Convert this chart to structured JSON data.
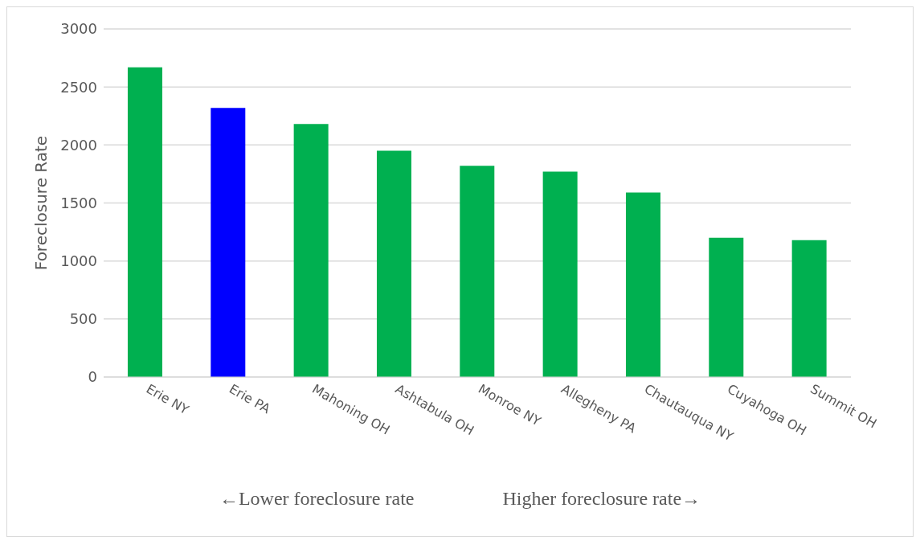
{
  "chart_data": {
    "type": "bar",
    "ylabel": "Foreclosure Rate",
    "categories": [
      "Erie NY",
      "Erie PA",
      "Mahoning OH",
      "Ashtabula OH",
      "Monroe NY",
      "Allegheny PA",
      "Chautauqua NY",
      "Cuyahoga OH",
      "Summit OH"
    ],
    "values": [
      2670,
      2320,
      2180,
      1950,
      1820,
      1770,
      1590,
      1200,
      1180
    ],
    "colors": [
      "#00b050",
      "#0000ff",
      "#00b050",
      "#00b050",
      "#00b050",
      "#00b050",
      "#00b050",
      "#00b050",
      "#00b050"
    ],
    "ylim": [
      0,
      3000
    ],
    "yticks": [
      0,
      500,
      1000,
      1500,
      2000,
      2500,
      3000
    ],
    "grid": "y",
    "annotations": [
      "←Lower foreclosure rate",
      "Higher foreclosure rate→"
    ]
  }
}
